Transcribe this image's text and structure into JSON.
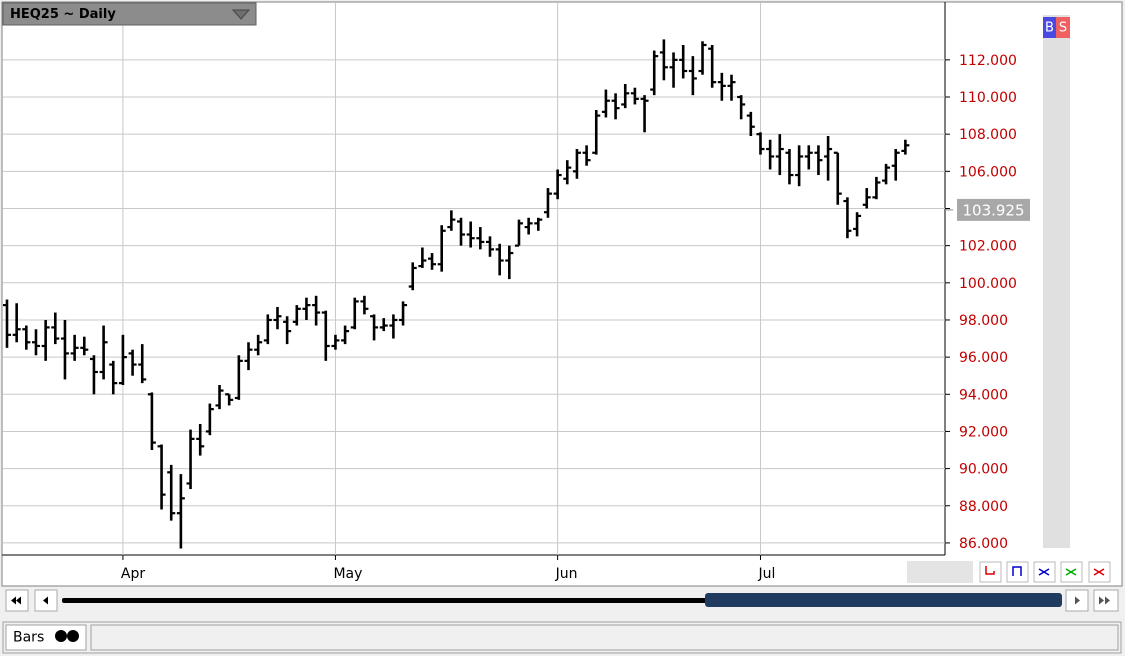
{
  "chart_data": {
    "type": "ohlc",
    "title": "HEQ25 ~ Daily",
    "categories": [
      null,
      null,
      null,
      null,
      null,
      null,
      null,
      null,
      null,
      null,
      null,
      null,
      "Apr",
      null,
      null,
      null,
      null,
      null,
      null,
      null,
      null,
      null,
      null,
      null,
      null,
      null,
      null,
      null,
      null,
      null,
      null,
      null,
      null,
      null,
      "May",
      null,
      null,
      null,
      null,
      null,
      null,
      null,
      null,
      null,
      null,
      null,
      null,
      null,
      null,
      null,
      null,
      null,
      null,
      null,
      null,
      null,
      null,
      "Jun",
      null,
      null,
      null,
      null,
      null,
      null,
      null,
      null,
      null,
      null,
      null,
      null,
      null,
      null,
      null,
      null,
      null,
      null,
      null,
      null,
      "Jul",
      null,
      null,
      null,
      null,
      null,
      null,
      null,
      null,
      null,
      null,
      null,
      null,
      null,
      null,
      null
    ],
    "open": [
      98.8,
      97.2,
      97.5,
      96.8,
      96.6,
      97.6,
      97.0,
      96.2,
      96.5,
      95.9,
      95.2,
      95.6,
      94.6,
      96.2,
      95.6,
      94.0,
      91.2,
      89.8,
      87.6,
      89.2,
      91.6,
      92.0,
      93.4,
      94.0,
      93.8,
      95.8,
      96.4,
      96.9,
      98.0,
      97.9,
      97.9,
      98.6,
      98.8,
      98.4,
      96.6,
      96.9,
      97.6,
      99.0,
      98.2,
      97.6,
      97.7,
      98.0,
      99.8,
      100.9,
      101.3,
      101.0,
      103.0,
      103.3,
      102.6,
      102.4,
      102.2,
      101.8,
      101.2,
      102.0,
      103.0,
      103.2,
      103.8,
      104.8,
      105.6,
      106.0,
      107.0,
      107.0,
      109.2,
      109.8,
      109.6,
      110.2,
      109.9,
      110.4,
      112.4,
      111.6,
      112.0,
      111.4,
      111.4,
      112.6,
      110.8,
      110.6,
      110.0,
      109.0,
      108.0,
      107.2,
      106.8,
      107.0,
      105.8,
      106.8,
      107.0,
      106.8,
      107.0,
      104.4,
      102.9,
      104.2,
      104.6,
      105.5,
      106.3,
      107.1
    ],
    "high": [
      99.1,
      98.9,
      97.7,
      97.5,
      98.0,
      98.4,
      98.0,
      97.2,
      97.1,
      96.1,
      97.7,
      95.8,
      97.2,
      96.4,
      96.7,
      94.1,
      91.3,
      90.2,
      89.7,
      92.1,
      92.4,
      93.5,
      94.5,
      94.0,
      96.1,
      96.8,
      97.2,
      98.3,
      98.7,
      98.2,
      98.8,
      99.2,
      99.3,
      98.5,
      97.2,
      97.7,
      99.2,
      99.3,
      98.3,
      98.1,
      98.3,
      99.0,
      101.1,
      101.9,
      101.6,
      103.1,
      103.9,
      103.5,
      103.3,
      103.0,
      102.5,
      102.1,
      102.0,
      103.4,
      103.5,
      103.5,
      105.1,
      106.1,
      106.6,
      107.2,
      107.4,
      109.3,
      110.4,
      110.2,
      110.7,
      110.5,
      110.1,
      112.5,
      113.1,
      112.4,
      112.8,
      112.2,
      113.0,
      112.8,
      111.3,
      111.2,
      110.1,
      109.2,
      108.1,
      107.7,
      108.0,
      107.2,
      107.4,
      107.4,
      107.4,
      107.9,
      107.0,
      104.6,
      103.8,
      105.1,
      105.7,
      106.4,
      107.2,
      107.7
    ],
    "low": [
      96.5,
      96.8,
      96.4,
      96.1,
      95.8,
      96.7,
      94.8,
      95.8,
      96.1,
      94.0,
      94.8,
      94.0,
      94.5,
      95.0,
      94.6,
      91.0,
      87.8,
      87.2,
      85.7,
      88.9,
      90.7,
      91.8,
      93.2,
      93.4,
      93.7,
      95.3,
      96.1,
      96.7,
      97.5,
      96.7,
      97.7,
      98.0,
      97.7,
      95.8,
      96.4,
      96.7,
      97.5,
      98.3,
      96.9,
      97.4,
      97.0,
      97.7,
      99.6,
      100.8,
      100.7,
      100.6,
      102.8,
      102.0,
      101.9,
      101.8,
      101.4,
      100.4,
      100.2,
      102.0,
      102.6,
      102.8,
      103.5,
      104.5,
      105.3,
      105.6,
      106.3,
      106.9,
      108.9,
      108.8,
      109.4,
      109.6,
      108.1,
      110.1,
      110.9,
      110.5,
      111.0,
      110.1,
      111.2,
      110.5,
      109.8,
      109.8,
      108.8,
      107.9,
      106.9,
      106.1,
      105.8,
      105.3,
      105.2,
      106.1,
      105.8,
      105.5,
      104.2,
      102.4,
      102.5,
      104.0,
      104.5,
      105.3,
      105.5,
      106.9
    ],
    "close": [
      97.2,
      97.5,
      96.8,
      96.6,
      97.6,
      97.0,
      96.2,
      96.5,
      96.4,
      95.2,
      96.8,
      94.6,
      96.0,
      95.6,
      94.8,
      91.4,
      88.6,
      87.6,
      88.4,
      91.6,
      91.2,
      93.2,
      94.2,
      93.7,
      95.8,
      96.4,
      96.8,
      98.0,
      98.2,
      97.4,
      98.6,
      98.8,
      98.4,
      96.6,
      96.9,
      97.4,
      99.0,
      98.6,
      97.6,
      97.7,
      98.0,
      98.8,
      100.8,
      101.2,
      101.0,
      102.8,
      103.4,
      102.6,
      102.4,
      102.2,
      101.8,
      101.2,
      101.6,
      103.2,
      103.2,
      103.4,
      104.8,
      105.8,
      106.2,
      107.0,
      106.6,
      109.0,
      109.8,
      109.4,
      110.2,
      109.9,
      109.8,
      112.2,
      111.6,
      112.0,
      111.4,
      111.0,
      112.8,
      110.8,
      110.6,
      110.8,
      109.6,
      108.4,
      107.2,
      106.8,
      107.2,
      105.8,
      106.8,
      107.0,
      106.6,
      107.2,
      104.8,
      102.8,
      103.6,
      104.6,
      105.4,
      106.2,
      107.0,
      107.4
    ],
    "color": "#000000",
    "last_price": 103.925,
    "grid": true,
    "ylim": [
      85.35,
      115.06
    ],
    "yticks": [
      {
        "value": 86,
        "label": "86.000"
      },
      {
        "value": 88,
        "label": "88.000"
      },
      {
        "value": 90,
        "label": "90.000"
      },
      {
        "value": 92,
        "label": "92.000"
      },
      {
        "value": 94,
        "label": "94.000"
      },
      {
        "value": 96,
        "label": "96.000"
      },
      {
        "value": 98,
        "label": "98.000"
      },
      {
        "value": 100,
        "label": "100.000"
      },
      {
        "value": 102,
        "label": "102.000"
      },
      {
        "value": 104,
        "label": "104.000"
      },
      {
        "value": 106,
        "label": "106.000"
      },
      {
        "value": 108,
        "label": "108.000"
      },
      {
        "value": 110,
        "label": "110.000"
      },
      {
        "value": 112,
        "label": "112.000"
      }
    ]
  },
  "toolbar": {
    "buy": "B",
    "sell": "S"
  },
  "status_bar": {
    "tab": "Bars"
  }
}
